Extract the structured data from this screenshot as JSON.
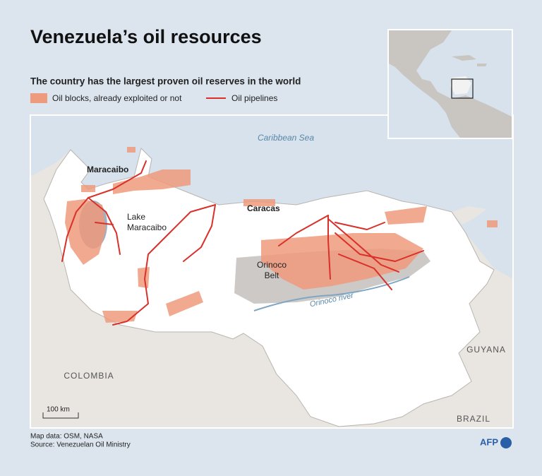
{
  "header": {
    "title": "Venezuela’s oil resources",
    "subtitle": "The country has the largest proven oil reserves in the world"
  },
  "legend": [
    {
      "label": "Oil blocks, already exploited or not"
    },
    {
      "label": "Oil pipelines"
    }
  ],
  "map": {
    "labels": {
      "caribbean_sea": "Caribbean Sea",
      "maracaibo": "Maracaibo",
      "lake_maracaibo": [
        "Lake",
        "Maracaibo"
      ],
      "caracas": "Caracas",
      "orinoco_belt": [
        "Orinoco",
        "Belt"
      ],
      "orinoco_river": "Orinoco river",
      "colombia": "COLOMBIA",
      "guyana": "GUYANA",
      "brazil": "BRAZIL"
    },
    "scale": "100 km"
  },
  "footer": {
    "map_data": "Map data: OSM, NASA",
    "source": "Source: Venezuelan Oil Ministry",
    "agency": "AFP"
  }
}
